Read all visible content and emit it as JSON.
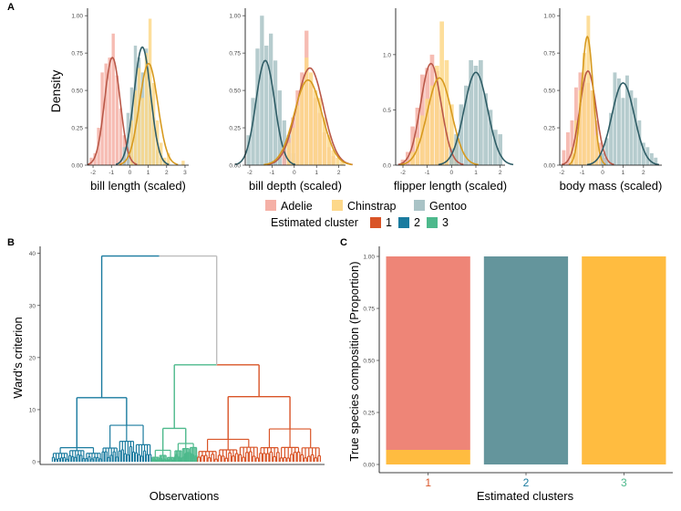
{
  "colors": {
    "adelie": "#EE8577",
    "chinstrap": "#FFBC40",
    "gentoo": "#64959C",
    "adelie_bar": "#F5B0A6",
    "chinstrap_bar": "#FDD88A",
    "gentoo_bar": "#A9C3C6",
    "adelie_line": "#B95848",
    "chinstrap_line": "#D79A1F",
    "gentoo_line": "#2F5D66",
    "cluster1": "#D95427",
    "cluster2": "#1A7B9F",
    "cluster3": "#4DB98C",
    "neutral": "#BDBDBD"
  },
  "panel_labels": {
    "a": "A",
    "b": "B",
    "c": "C"
  },
  "legend": {
    "species": [
      "Adelie",
      "Chinstrap",
      "Gentoo"
    ],
    "cluster_title": "Estimated cluster",
    "clusters": [
      "1",
      "2",
      "3"
    ]
  },
  "chart_data": [
    {
      "type": "histogram-density",
      "panel": "A",
      "ylabel": "Density",
      "facets": [
        {
          "xlabel": "bill length (scaled)",
          "xticks": [
            "-2",
            "-1",
            "0",
            "1",
            "2",
            "3"
          ],
          "xlim": [
            -2.3,
            3.2
          ],
          "yticks": [
            "0.00",
            "0.25",
            "0.50",
            "0.75",
            "1.00"
          ],
          "ylim": [
            0,
            1.05
          ],
          "series": [
            {
              "name": "Adelie",
              "mu": -0.95,
              "sd": 0.42,
              "peak": 0.72,
              "bars": [
                [
                  -2.1,
                  0.05
                ],
                [
                  -1.9,
                  0.08
                ],
                [
                  -1.7,
                  0.25
                ],
                [
                  -1.5,
                  0.62
                ],
                [
                  -1.3,
                  0.68
                ],
                [
                  -1.1,
                  0.72
                ],
                [
                  -0.9,
                  0.88
                ],
                [
                  -0.7,
                  0.6
                ],
                [
                  -0.5,
                  0.38
                ],
                [
                  -0.3,
                  0.2
                ],
                [
                  -0.1,
                  0.12
                ],
                [
                  0.1,
                  0.06
                ],
                [
                  0.3,
                  0.03
                ]
              ]
            },
            {
              "name": "Gentoo",
              "mu": 0.68,
              "sd": 0.45,
              "peak": 0.79,
              "bars": [
                [
                  -0.3,
                  0.12
                ],
                [
                  -0.1,
                  0.35
                ],
                [
                  0.1,
                  0.52
                ],
                [
                  0.3,
                  0.8
                ],
                [
                  0.5,
                  0.72
                ],
                [
                  0.7,
                  0.62
                ],
                [
                  0.9,
                  0.78
                ],
                [
                  1.1,
                  0.5
                ],
                [
                  1.3,
                  0.32
                ],
                [
                  1.5,
                  0.1
                ],
                [
                  1.7,
                  0.05
                ],
                [
                  1.9,
                  0.03
                ]
              ]
            },
            {
              "name": "Chinstrap",
              "mu": 1.02,
              "sd": 0.5,
              "peak": 0.68,
              "bars": [
                [
                  0.1,
                  0.3
                ],
                [
                  0.3,
                  0.5
                ],
                [
                  0.5,
                  0.65
                ],
                [
                  0.7,
                  0.45
                ],
                [
                  0.9,
                  0.75
                ],
                [
                  1.1,
                  0.98
                ],
                [
                  1.3,
                  0.55
                ],
                [
                  1.5,
                  0.3
                ],
                [
                  1.7,
                  0.15
                ],
                [
                  1.9,
                  0.05
                ],
                [
                  2.1,
                  0.08
                ],
                [
                  2.9,
                  0.03
                ]
              ]
            }
          ]
        },
        {
          "xlabel": "bill depth (scaled)",
          "xticks": [
            "-2",
            "-1",
            "0",
            "1",
            "2"
          ],
          "xlim": [
            -2.2,
            2.3
          ],
          "yticks": [
            "0.00",
            "0.25",
            "0.50",
            "0.75",
            "1.00"
          ],
          "ylim": [
            0,
            1.05
          ],
          "series": [
            {
              "name": "Gentoo",
              "mu": -1.3,
              "sd": 0.42,
              "peak": 0.7,
              "bars": [
                [
                  -2.05,
                  0.2
                ],
                [
                  -1.85,
                  0.45
                ],
                [
                  -1.65,
                  0.78
                ],
                [
                  -1.45,
                  1.0
                ],
                [
                  -1.25,
                  0.8
                ],
                [
                  -1.05,
                  0.88
                ],
                [
                  -0.85,
                  0.7
                ],
                [
                  -0.65,
                  0.5
                ],
                [
                  -0.45,
                  0.3
                ],
                [
                  -0.25,
                  0.2
                ],
                [
                  -0.05,
                  0.08
                ]
              ]
            },
            {
              "name": "Adelie",
              "mu": 0.7,
              "sd": 0.6,
              "peak": 0.65,
              "bars": [
                [
                  -0.45,
                  0.1
                ],
                [
                  -0.25,
                  0.18
                ],
                [
                  -0.05,
                  0.32
                ],
                [
                  0.15,
                  0.5
                ],
                [
                  0.35,
                  0.62
                ],
                [
                  0.55,
                  0.9
                ],
                [
                  0.75,
                  0.55
                ],
                [
                  0.95,
                  0.45
                ],
                [
                  1.15,
                  0.35
                ],
                [
                  1.35,
                  0.22
                ],
                [
                  1.55,
                  0.12
                ],
                [
                  1.75,
                  0.06
                ]
              ]
            },
            {
              "name": "Chinstrap",
              "mu": 0.62,
              "sd": 0.62,
              "peak": 0.57,
              "bars": [
                [
                  -0.25,
                  0.15
                ],
                [
                  -0.05,
                  0.25
                ],
                [
                  0.15,
                  0.4
                ],
                [
                  0.35,
                  0.55
                ],
                [
                  0.55,
                  0.72
                ],
                [
                  0.75,
                  0.62
                ],
                [
                  0.95,
                  0.5
                ],
                [
                  1.15,
                  0.45
                ],
                [
                  1.35,
                  0.32
                ],
                [
                  1.55,
                  0.2
                ],
                [
                  1.75,
                  0.1
                ],
                [
                  1.95,
                  0.05
                ],
                [
                  2.15,
                  0.03
                ]
              ]
            }
          ]
        },
        {
          "xlabel": "flipper length (scaled)",
          "xticks": [
            "-2",
            "-1",
            "0",
            "1",
            "2"
          ],
          "xlim": [
            -2.3,
            2.2
          ],
          "yticks": [
            "0.0",
            "0.5",
            "1.0"
          ],
          "ylim": [
            0,
            1.42
          ],
          "series": [
            {
              "name": "Adelie",
              "mu": -0.85,
              "sd": 0.42,
              "peak": 0.92,
              "bars": [
                [
                  -2.0,
                  0.05
                ],
                [
                  -1.8,
                  0.12
                ],
                [
                  -1.6,
                  0.35
                ],
                [
                  -1.4,
                  0.52
                ],
                [
                  -1.2,
                  0.82
                ],
                [
                  -1.0,
                  0.88
                ],
                [
                  -0.8,
                  1.0
                ],
                [
                  -0.6,
                  0.85
                ],
                [
                  -0.4,
                  0.5
                ],
                [
                  -0.2,
                  0.3
                ],
                [
                  0.0,
                  0.15
                ],
                [
                  0.2,
                  0.05
                ]
              ]
            },
            {
              "name": "Chinstrap",
              "mu": -0.5,
              "sd": 0.5,
              "peak": 0.79,
              "bars": [
                [
                  -1.6,
                  0.12
                ],
                [
                  -1.4,
                  0.25
                ],
                [
                  -1.2,
                  0.45
                ],
                [
                  -1.0,
                  0.6
                ],
                [
                  -0.8,
                  0.72
                ],
                [
                  -0.6,
                  0.9
                ],
                [
                  -0.4,
                  1.3
                ],
                [
                  -0.2,
                  0.95
                ],
                [
                  0.0,
                  0.55
                ],
                [
                  0.2,
                  0.25
                ]
              ]
            },
            {
              "name": "Gentoo",
              "mu": 1.0,
              "sd": 0.48,
              "peak": 0.84,
              "bars": [
                [
                  0.0,
                  0.15
                ],
                [
                  0.2,
                  0.28
                ],
                [
                  0.4,
                  0.55
                ],
                [
                  0.6,
                  0.72
                ],
                [
                  0.8,
                  0.95
                ],
                [
                  1.0,
                  0.9
                ],
                [
                  1.2,
                  0.95
                ],
                [
                  1.4,
                  0.65
                ],
                [
                  1.6,
                  0.5
                ],
                [
                  1.8,
                  0.32
                ],
                [
                  2.0,
                  0.28
                ]
              ]
            }
          ]
        },
        {
          "xlabel": "body mass (scaled)",
          "xticks": [
            "-2",
            "-1",
            "0",
            "1",
            "2"
          ],
          "xlim": [
            -2.1,
            2.9
          ],
          "yticks": [
            "0.00",
            "0.25",
            "0.50",
            "0.75",
            "1.00"
          ],
          "ylim": [
            0,
            1.05
          ],
          "series": [
            {
              "name": "Adelie",
              "mu": -0.72,
              "sd": 0.4,
              "peak": 0.63,
              "bars": [
                [
                  -1.9,
                  0.1
                ],
                [
                  -1.7,
                  0.22
                ],
                [
                  -1.5,
                  0.3
                ],
                [
                  -1.3,
                  0.52
                ],
                [
                  -1.1,
                  0.62
                ],
                [
                  -0.9,
                  0.62
                ],
                [
                  -0.7,
                  0.55
                ],
                [
                  -0.5,
                  0.5
                ],
                [
                  -0.3,
                  0.3
                ],
                [
                  -0.1,
                  0.15
                ],
                [
                  0.1,
                  0.05
                ]
              ]
            },
            {
              "name": "Chinstrap",
              "mu": -0.75,
              "sd": 0.28,
              "peak": 0.86,
              "bars": [
                [
                  -1.5,
                  0.12
                ],
                [
                  -1.3,
                  0.3
                ],
                [
                  -1.1,
                  0.5
                ],
                [
                  -0.9,
                  0.75
                ],
                [
                  -0.7,
                  1.0
                ],
                [
                  -0.5,
                  0.5
                ],
                [
                  -0.3,
                  0.2
                ],
                [
                  -0.1,
                  0.06
                ]
              ]
            },
            {
              "name": "Gentoo",
              "mu": 1.0,
              "sd": 0.55,
              "peak": 0.55,
              "bars": [
                [
                  0.0,
                  0.08
                ],
                [
                  0.2,
                  0.18
                ],
                [
                  0.4,
                  0.35
                ],
                [
                  0.6,
                  0.62
                ],
                [
                  0.8,
                  0.58
                ],
                [
                  1.0,
                  0.45
                ],
                [
                  1.2,
                  0.6
                ],
                [
                  1.4,
                  0.5
                ],
                [
                  1.6,
                  0.45
                ],
                [
                  1.8,
                  0.3
                ],
                [
                  2.0,
                  0.15
                ],
                [
                  2.2,
                  0.12
                ],
                [
                  2.4,
                  0.08
                ],
                [
                  2.6,
                  0.05
                ]
              ]
            }
          ]
        }
      ]
    },
    {
      "type": "dendrogram",
      "panel": "B",
      "xlabel": "Observations",
      "ylabel": "Ward's criterion",
      "yticks": [
        "0",
        "10",
        "20",
        "30",
        "40"
      ],
      "ylim": [
        0,
        41
      ],
      "root_height": 39.5,
      "clusters": [
        {
          "name": "2",
          "size": 0.37,
          "height": 12.3,
          "sub_heights": [
            2.7,
            7.0
          ]
        },
        {
          "name": "3",
          "size": 0.17,
          "height": 6.4,
          "sub_heights": [
            2.2,
            3.5
          ]
        },
        {
          "name": "1",
          "size": 0.46,
          "height": 12.5,
          "sub_heights": [
            4.3,
            6.3
          ]
        }
      ],
      "merges": [
        {
          "left": "3",
          "right": "1",
          "height": 18.6
        },
        {
          "left": "2",
          "right": "3+1",
          "height": 39.5
        }
      ]
    },
    {
      "type": "stacked-bar",
      "panel": "C",
      "xlabel": "Estimated clusters",
      "ylabel": "True species composition (Proportion)",
      "categories": [
        "1",
        "2",
        "3"
      ],
      "yticks": [
        "0.00",
        "0.25",
        "0.50",
        "0.75",
        "1.00"
      ],
      "ylim": [
        0,
        1
      ],
      "series": [
        {
          "name": "Chinstrap",
          "values": [
            0.07,
            0,
            1
          ]
        },
        {
          "name": "Adelie",
          "values": [
            0.93,
            0,
            0
          ]
        },
        {
          "name": "Gentoo",
          "values": [
            0,
            1,
            0
          ]
        }
      ]
    }
  ]
}
